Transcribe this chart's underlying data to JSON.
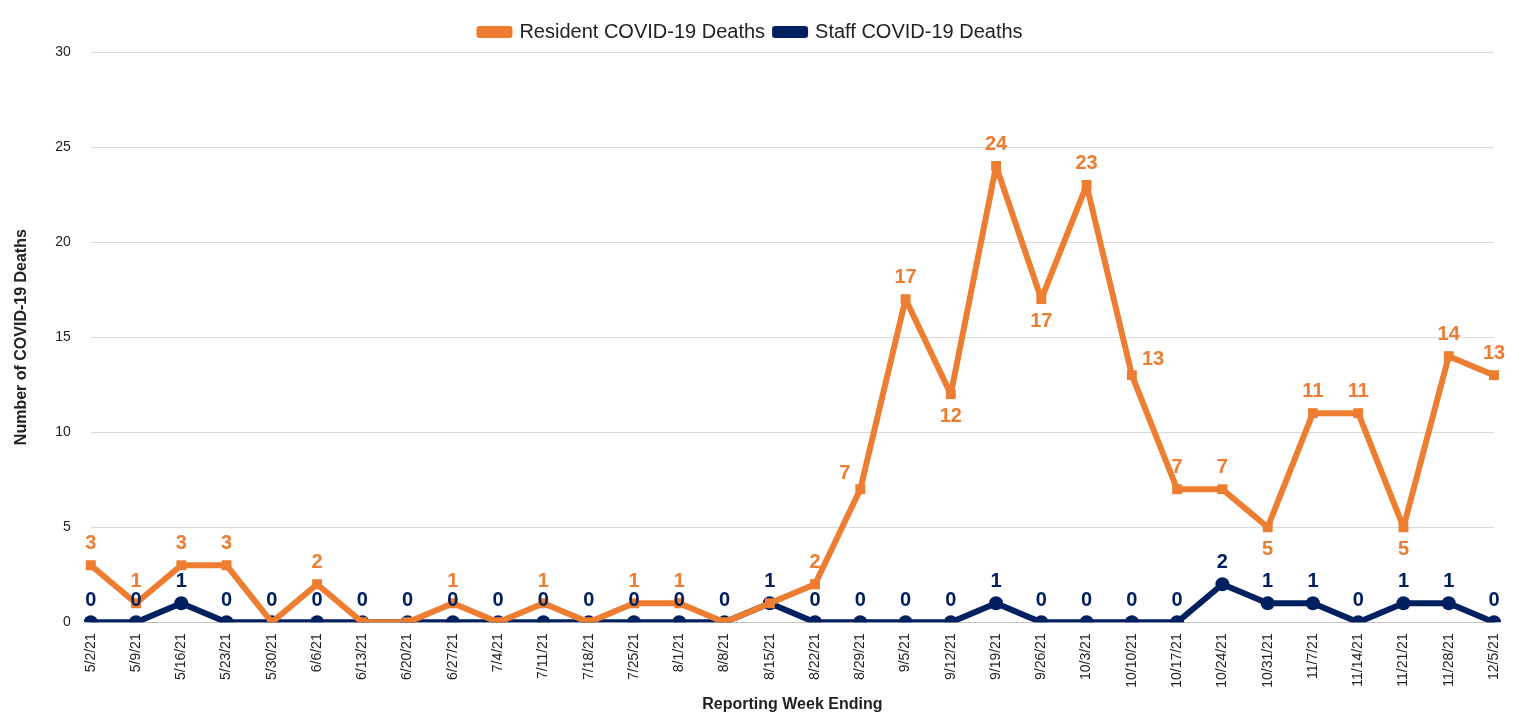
{
  "chart_data": {
    "type": "line",
    "xlabel": "Reporting Week Ending",
    "ylabel": "Number of COVID-19 Deaths",
    "categories": [
      "5/2/21",
      "5/9/21",
      "5/16/21",
      "5/23/21",
      "5/30/21",
      "6/6/21",
      "6/13/21",
      "6/20/21",
      "6/27/21",
      "7/4/21",
      "7/11/21",
      "7/18/21",
      "7/25/21",
      "8/1/21",
      "8/8/21",
      "8/15/21",
      "8/22/21",
      "8/29/21",
      "9/5/21",
      "9/12/21",
      "9/19/21",
      "9/26/21",
      "10/3/21",
      "10/10/21",
      "10/17/21",
      "10/24/21",
      "10/31/21",
      "11/7/21",
      "11/14/21",
      "11/21/21",
      "11/28/21",
      "12/5/21"
    ],
    "series": [
      {
        "name": "Resident COVID-19 Deaths",
        "color": "#ed7d31",
        "marker": "square",
        "values": [
          3,
          1,
          3,
          3,
          0,
          2,
          0,
          0,
          1,
          0,
          1,
          0,
          1,
          1,
          0,
          1,
          2,
          7,
          17,
          12,
          24,
          17,
          23,
          13,
          7,
          7,
          5,
          11,
          11,
          5,
          14,
          13
        ],
        "value_labels": [
          "3",
          "1",
          "3",
          "3",
          null,
          "2",
          null,
          null,
          "1",
          null,
          "1",
          null,
          "1",
          "1",
          null,
          null,
          "2",
          "7",
          "17",
          "12",
          "24",
          "17",
          "23",
          "13",
          "7",
          "7",
          "5",
          "11",
          "11",
          "5",
          "14",
          "13"
        ]
      },
      {
        "name": "Staff COVID-19 Deaths",
        "color": "#002060",
        "marker": "circle",
        "values": [
          0,
          0,
          1,
          0,
          0,
          0,
          0,
          0,
          0,
          0,
          0,
          0,
          0,
          0,
          0,
          1,
          0,
          0,
          0,
          0,
          1,
          0,
          0,
          0,
          0,
          2,
          1,
          1,
          0,
          1,
          1,
          0
        ],
        "value_labels": [
          "0",
          "0",
          "1",
          "0",
          "0",
          "0",
          "0",
          "0",
          "0",
          "0",
          "0",
          "0",
          "0",
          "0",
          "0",
          "1",
          "0",
          "0",
          "0",
          "0",
          "1",
          "0",
          "0",
          "0",
          "0",
          "2",
          "1",
          "1",
          "0",
          "1",
          "1",
          "0"
        ]
      }
    ],
    "ylim": [
      0,
      30
    ],
    "yticks": [
      0,
      5,
      10,
      15,
      20,
      25,
      30
    ],
    "grid": "y",
    "legend": "top"
  }
}
